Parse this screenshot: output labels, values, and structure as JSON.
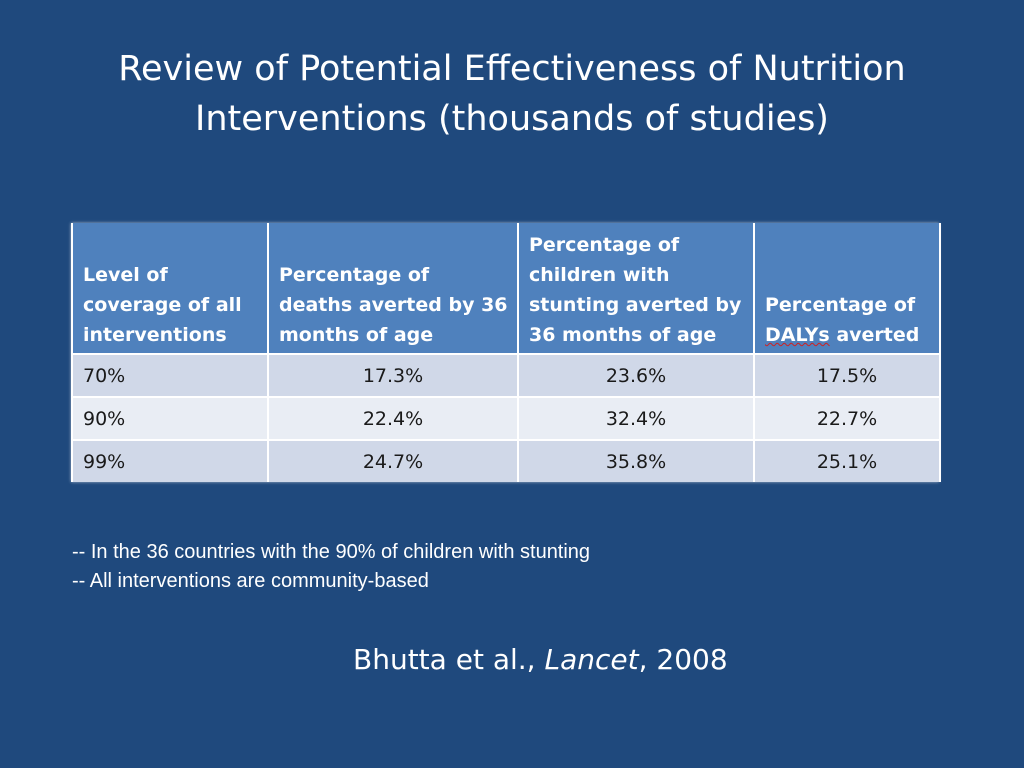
{
  "slide": {
    "title_line1": "Review of Potential Effectiveness of Nutrition",
    "title_line2": "Interventions (thousands of studies)",
    "background_color": "#1f497d",
    "table": {
      "header_color": "#4f81bd",
      "headers": [
        "Level of coverage of all interventions",
        "Percentage of deaths averted by 36 months of age",
        "Percentage of children with stunting averted by 36 months of age",
        "Percentage of DALYs averted"
      ],
      "header_last_prefix": "Percentage of",
      "header_last_underlined": "DALYs",
      "header_last_suffix": "averted",
      "rows": [
        [
          "70%",
          "17.3%",
          "23.6%",
          "17.5%"
        ],
        [
          "90%",
          "22.4%",
          "32.4%",
          "22.7%"
        ],
        [
          "99%",
          "24.7%",
          "35.8%",
          "25.1%"
        ]
      ]
    },
    "notes": [
      "-- In the 36 countries with the 90% of children with stunting",
      "-- All interventions are community-based"
    ],
    "citation": {
      "authors": "Bhutta et al., ",
      "journal": "Lancet",
      "year": ", 2008"
    }
  }
}
